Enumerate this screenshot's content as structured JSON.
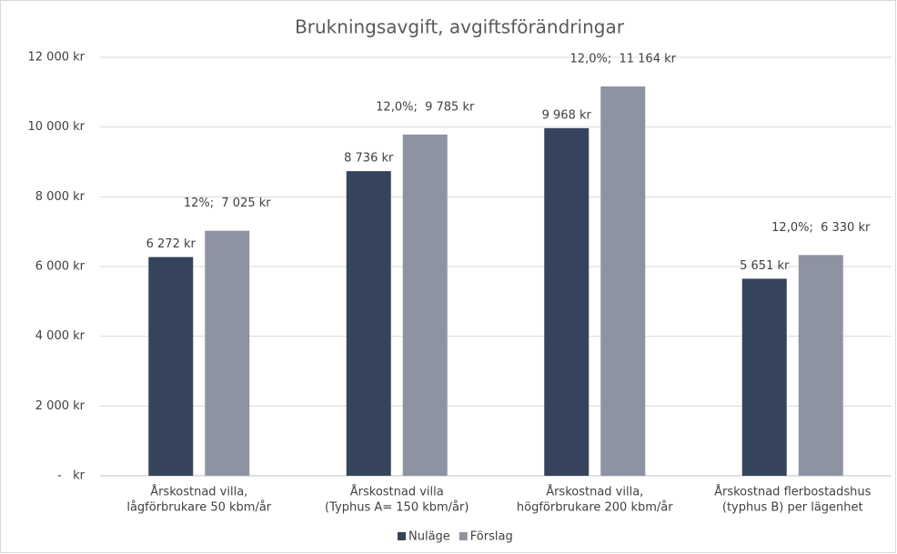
{
  "chart_data": {
    "type": "bar",
    "title": "Brukningsavgift, avgiftsförändringar",
    "categories": [
      [
        "Årskostnad villa,",
        "lågförbrukare 50 kbm/år"
      ],
      [
        "Årskostnad villa",
        "(Typhus A= 150 kbm/år)"
      ],
      [
        "Årskostnad villa,",
        "högförbrukare 200 kbm/år"
      ],
      [
        "Årskostnad flerbostadshus",
        "(typhus B) per lägenhet"
      ]
    ],
    "series": [
      {
        "name": "Nuläge",
        "color": "#36435c",
        "values": [
          6272,
          8736,
          9968,
          5651
        ],
        "value_labels": [
          "6 272 kr",
          "8 736 kr",
          "9 968 kr",
          "5 651 kr"
        ]
      },
      {
        "name": "Förslag",
        "color": "#8d93a0",
        "values": [
          7025,
          9785,
          11164,
          6330
        ],
        "value_labels": [
          "12%;  7 025 kr",
          "12,0%;  9 785 kr",
          "12,0%;  11 164 kr",
          "12,0%;  6 330 kr"
        ]
      }
    ],
    "ylim": [
      0,
      12000
    ],
    "yticks": [
      {
        "value": 0,
        "label": "-   kr"
      },
      {
        "value": 2000,
        "label": "2 000 kr"
      },
      {
        "value": 4000,
        "label": "4 000 kr"
      },
      {
        "value": 6000,
        "label": "6 000 kr"
      },
      {
        "value": 8000,
        "label": "8 000 kr"
      },
      {
        "value": 10000,
        "label": "10 000 kr"
      },
      {
        "value": 12000,
        "label": "12 000 kr"
      }
    ],
    "grid": true,
    "legend": "bottom"
  }
}
